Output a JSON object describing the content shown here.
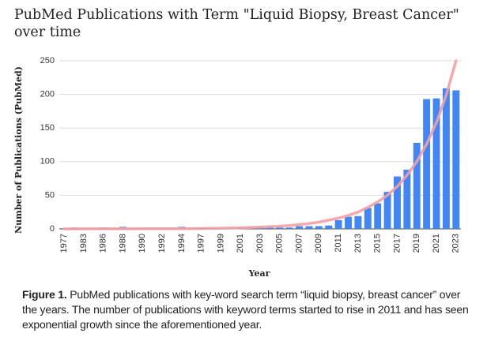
{
  "chart_data": {
    "type": "bar",
    "title": "PubMed Publications with Term \"Liquid Biopsy, Breast Cancer\" over time",
    "x_label": "Year",
    "y_label": "Number of Publications (PubMed)",
    "categories": [
      "1977",
      null,
      "1983",
      null,
      "1986",
      null,
      "1988",
      null,
      "1990",
      null,
      "1992",
      null,
      "1994",
      null,
      "1997",
      null,
      "1999",
      null,
      "2001",
      null,
      "2003",
      null,
      "2005",
      null,
      "2007",
      null,
      "2009",
      null,
      "2011",
      null,
      "2013",
      null,
      "2015",
      null,
      "2017",
      null,
      "2019",
      null,
      "2021",
      null,
      "2023"
    ],
    "values": [
      1,
      2,
      1,
      1,
      2,
      1,
      3,
      1,
      1,
      1,
      1,
      1,
      3,
      1,
      2,
      1,
      1,
      1,
      2,
      3,
      3,
      4,
      2,
      2,
      4,
      4,
      4,
      5,
      13,
      18,
      19,
      31,
      38,
      55,
      78,
      88,
      128,
      193,
      194,
      209,
      206
    ],
    "color": "#4285f4",
    "trendline": {
      "color": "#f4a0a4",
      "values": [
        0,
        0,
        0.1,
        0.1,
        0.1,
        0.1,
        0.1,
        0.1,
        0.2,
        0.2,
        0.2,
        0.3,
        0.4,
        0.5,
        0.6,
        0.8,
        1.0,
        1.3,
        1.6,
        2.0,
        2.6,
        3.2,
        4.0,
        5.1,
        6.4,
        8,
        10,
        13,
        16,
        20,
        25,
        32,
        40,
        50,
        63,
        80,
        100,
        126,
        158,
        199,
        250
      ]
    },
    "ylim": [
      0,
      250
    ],
    "yticks": [
      0,
      50,
      100,
      150,
      200,
      250
    ],
    "grid": true,
    "caption_label": "Figure 1.",
    "caption_text": "PubMed publications with key-word search term “liquid biopsy, breast cancer” over the years. The number of publications with keyword terms started to rise in 2011 and has seen exponential growth since the aforementioned year."
  }
}
